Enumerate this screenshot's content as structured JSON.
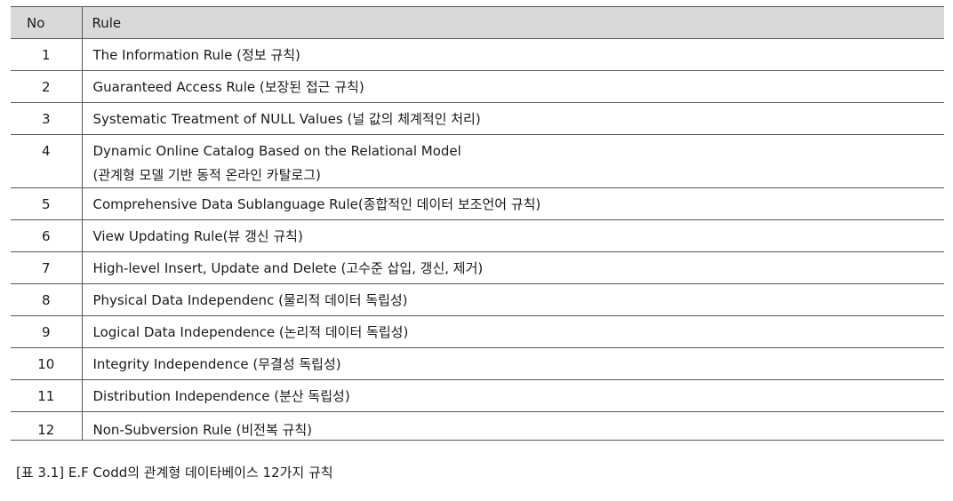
{
  "table": {
    "headers": {
      "no": "No",
      "rule": "Rule"
    },
    "rows": [
      {
        "no": "1",
        "rule": "The Information Rule (정보 규칙)"
      },
      {
        "no": "2",
        "rule": "Guaranteed Access Rule (보장된 접근 규칙)"
      },
      {
        "no": "3",
        "rule": "Systematic Treatment of NULL Values (널 값의 체계적인 처리)"
      },
      {
        "no": "4",
        "rule": "Dynamic Online Catalog Based on the Relational Model",
        "rule_line2": "(관계형 모델 기반 동적 온라인 카탈로그)"
      },
      {
        "no": "5",
        "rule": "Comprehensive Data Sublanguage Rule(종합적인 데이터 보조언어 규칙)"
      },
      {
        "no": "6",
        "rule": "View Updating Rule(뷰 갱신 규칙)"
      },
      {
        "no": "7",
        "rule": "High-level Insert, Update and Delete (고수준 삽입, 갱신, 제거)"
      },
      {
        "no": "8",
        "rule": "Physical Data Independenc (물리적 데이터 독립성)"
      },
      {
        "no": "9",
        "rule": "Logical Data Independence (논리적 데이터 독립성)"
      },
      {
        "no": "10",
        "rule": "Integrity Independence (무결성 독립성)"
      },
      {
        "no": "11",
        "rule": "Distribution Independence (분산 독립성)"
      },
      {
        "no": "12",
        "rule": "Non-Subversion Rule (비전복 규칙)"
      }
    ]
  },
  "caption": "[표 3.1] E.F Codd의 관계형 데이타베이스 12가지 규칙"
}
